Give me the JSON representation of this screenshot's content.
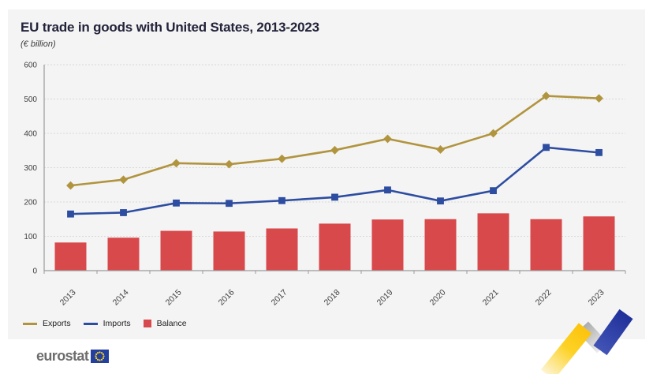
{
  "header": {
    "title": "EU trade in goods with United States, 2013-2023",
    "subtitle": "(€ billion)"
  },
  "chart_data": {
    "type": "combo",
    "title": "EU trade in goods with United States, 2013-2023",
    "unit": "€ billion",
    "categories": [
      "2013",
      "2014",
      "2015",
      "2016",
      "2017",
      "2018",
      "2019",
      "2020",
      "2021",
      "2022",
      "2023"
    ],
    "series": [
      {
        "name": "Exports",
        "type": "line",
        "marker": "diamond",
        "color": "#b1943e",
        "values": [
          248,
          265,
          313,
          310,
          326,
          351,
          384,
          353,
          400,
          509,
          502
        ]
      },
      {
        "name": "Imports",
        "type": "line",
        "marker": "square",
        "color": "#2d4da1",
        "values": [
          165,
          169,
          197,
          196,
          204,
          214,
          235,
          203,
          233,
          359,
          344
        ]
      },
      {
        "name": "Balance",
        "type": "bar",
        "color": "#d8494b",
        "values": [
          82,
          96,
          116,
          114,
          123,
          137,
          149,
          150,
          167,
          150,
          158
        ]
      }
    ],
    "ylim": [
      0,
      600
    ],
    "ytick_step": 100,
    "yticks": [
      "0",
      "100",
      "200",
      "300",
      "400",
      "500",
      "600"
    ],
    "grid": "horizontal-dashed",
    "legend_position": "bottom-left"
  },
  "colors": {
    "panel_bg": "#f4f4f4",
    "grid": "#d9d9d9",
    "axis": "#9a9a9a",
    "tick_label": "#404040",
    "deco_yellow": "#fcc514",
    "deco_gray": "#bdbdbd",
    "deco_blue": "#2c3da6"
  },
  "footer": {
    "logo_text": "eurostat"
  }
}
